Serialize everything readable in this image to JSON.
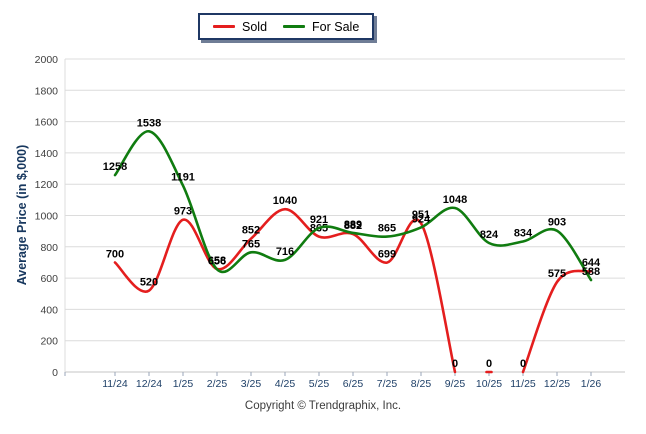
{
  "legend": {
    "items": [
      {
        "label": "Sold",
        "color": "#e41e1e"
      },
      {
        "label": "For Sale",
        "color": "#107c10"
      }
    ]
  },
  "chart_data": {
    "type": "line",
    "categories": [
      "11/24",
      "12/24",
      "1/25",
      "2/25",
      "3/25",
      "4/25",
      "5/25",
      "6/25",
      "7/25",
      "8/25",
      "9/25",
      "10/25",
      "11/25",
      "12/25",
      "1/26"
    ],
    "series": [
      {
        "name": "Sold",
        "color": "#e41e1e",
        "values": [
          700,
          520,
          973,
          658,
          852,
          1040,
          865,
          882,
          699,
          951,
          0,
          0,
          0,
          575,
          644
        ],
        "segments": [
          [
            0,
            10
          ],
          [
            12,
            14
          ]
        ],
        "isolated_marks": [
          11
        ]
      },
      {
        "name": "For Sale",
        "color": "#107c10",
        "values": [
          1258,
          1538,
          1191,
          656,
          765,
          716,
          921,
          889,
          865,
          924,
          1048,
          824,
          834,
          903,
          588
        ],
        "segments": [
          [
            0,
            14
          ]
        ],
        "isolated_marks": []
      }
    ],
    "title": "",
    "xlabel": "",
    "ylabel": "Average Price (in $,000)",
    "ylim": [
      0,
      2000
    ],
    "ytick_step": 200,
    "grid": true,
    "legend_position": "top-center"
  },
  "footer": {
    "copyright": "Copyright © Trendgraphix, Inc."
  },
  "colors": {
    "grid_line": "#dcdcdc",
    "baseline": "#c6c6c6",
    "tick": "#9aa5b8",
    "y_tick_label": "#404040",
    "x_tick_label": "#1f4068",
    "data_label": "#000000",
    "legend_border": "#1f3864"
  }
}
